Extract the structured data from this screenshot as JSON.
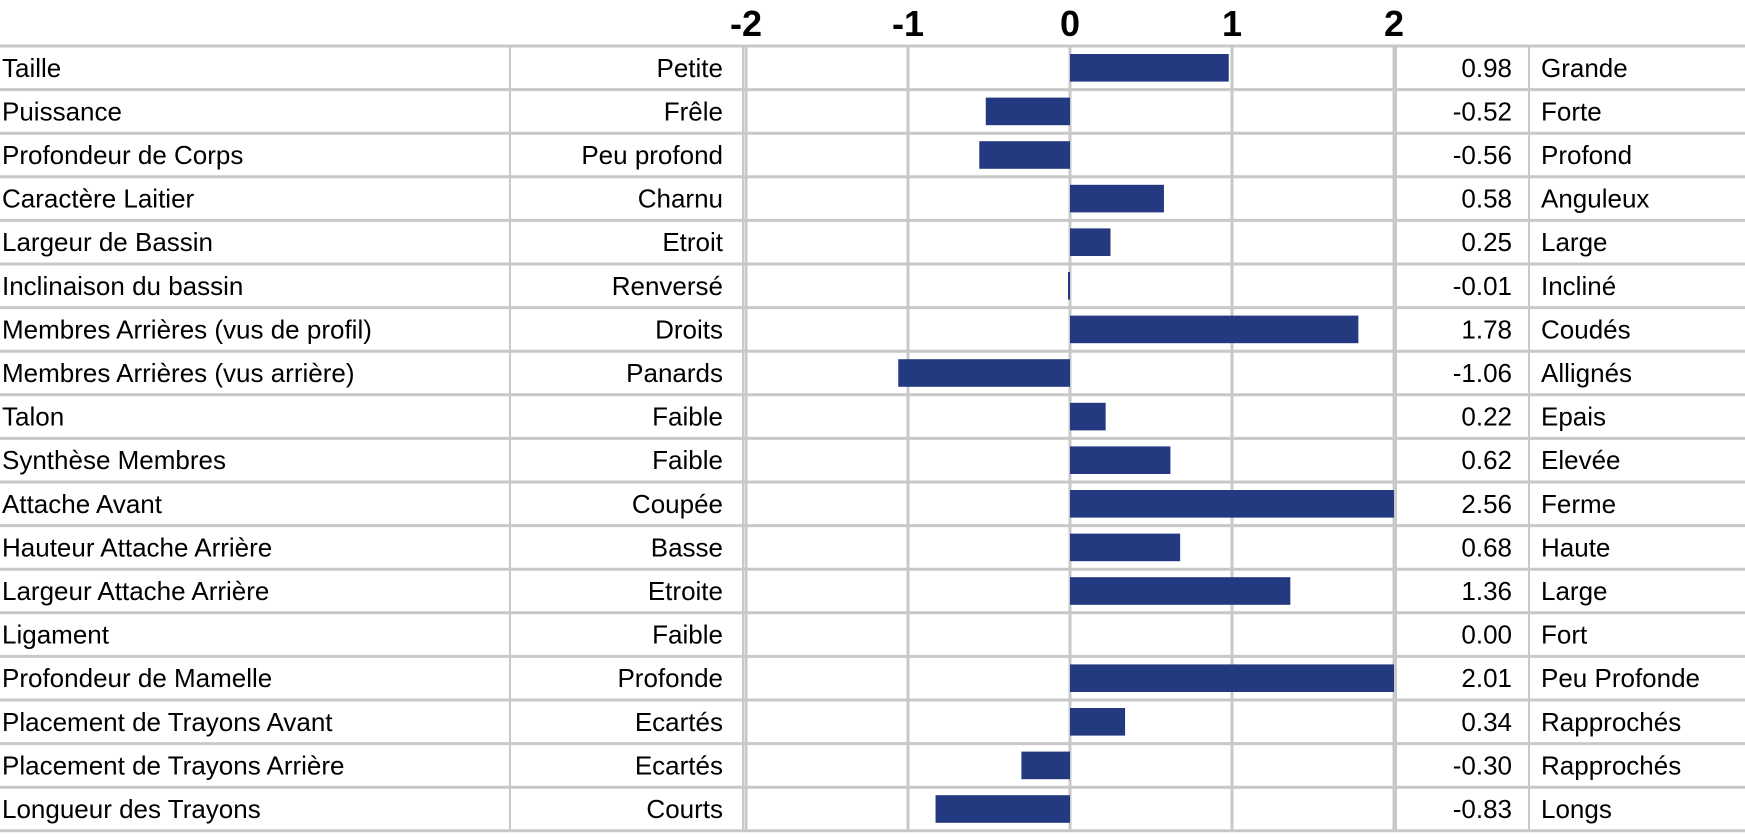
{
  "chart_data": {
    "type": "bar",
    "orientation": "horizontal",
    "title": "",
    "xlabel": "",
    "ylabel": "",
    "xlim": [
      -2,
      2
    ],
    "xticks": [
      "-2",
      "-1",
      "0",
      "1",
      "2"
    ],
    "grid": true,
    "bar_color": "#243a80",
    "rows": [
      {
        "trait": "Taille",
        "low": "Petite",
        "value": 0.98,
        "value_label": "0.98",
        "high": "Grande"
      },
      {
        "trait": "Puissance",
        "low": "Frêle",
        "value": -0.52,
        "value_label": "-0.52",
        "high": "Forte"
      },
      {
        "trait": "Profondeur de Corps",
        "low": "Peu profond",
        "value": -0.56,
        "value_label": "-0.56",
        "high": "Profond"
      },
      {
        "trait": "Caractère Laitier",
        "low": "Charnu",
        "value": 0.58,
        "value_label": "0.58",
        "high": "Anguleux"
      },
      {
        "trait": "Largeur de Bassin",
        "low": "Etroit",
        "value": 0.25,
        "value_label": "0.25",
        "high": "Large"
      },
      {
        "trait": "Inclinaison du bassin",
        "low": "Renversé",
        "value": -0.01,
        "value_label": "-0.01",
        "high": "Incliné"
      },
      {
        "trait": "Membres Arrières (vus de profil)",
        "low": "Droits",
        "value": 1.78,
        "value_label": "1.78",
        "high": "Coudés"
      },
      {
        "trait": "Membres Arrières (vus arrière)",
        "low": "Panards",
        "value": -1.06,
        "value_label": "-1.06",
        "high": "Allignés"
      },
      {
        "trait": "Talon",
        "low": "Faible",
        "value": 0.22,
        "value_label": "0.22",
        "high": "Epais"
      },
      {
        "trait": "Synthèse Membres",
        "low": "Faible",
        "value": 0.62,
        "value_label": "0.62",
        "high": "Elevée"
      },
      {
        "trait": "Attache Avant",
        "low": "Coupée",
        "value": 2.56,
        "value_label": "2.56",
        "high": "Ferme"
      },
      {
        "trait": "Hauteur Attache Arrière",
        "low": "Basse",
        "value": 0.68,
        "value_label": "0.68",
        "high": "Haute"
      },
      {
        "trait": "Largeur Attache Arrière",
        "low": "Etroite",
        "value": 1.36,
        "value_label": "1.36",
        "high": "Large"
      },
      {
        "trait": "Ligament",
        "low": "Faible",
        "value": 0.0,
        "value_label": "0.00",
        "high": "Fort"
      },
      {
        "trait": "Profondeur de Mamelle",
        "low": "Profonde",
        "value": 2.01,
        "value_label": "2.01",
        "high": "Peu Profonde"
      },
      {
        "trait": "Placement de Trayons Avant",
        "low": "Ecartés",
        "value": 0.34,
        "value_label": "0.34",
        "high": "Rapprochés"
      },
      {
        "trait": "Placement de Trayons Arrière",
        "low": "Ecartés",
        "value": -0.3,
        "value_label": "-0.30",
        "high": "Rapprochés"
      },
      {
        "trait": "Longueur des Trayons",
        "low": "Courts",
        "value": -0.83,
        "value_label": "-0.83",
        "high": "Longs"
      }
    ]
  }
}
